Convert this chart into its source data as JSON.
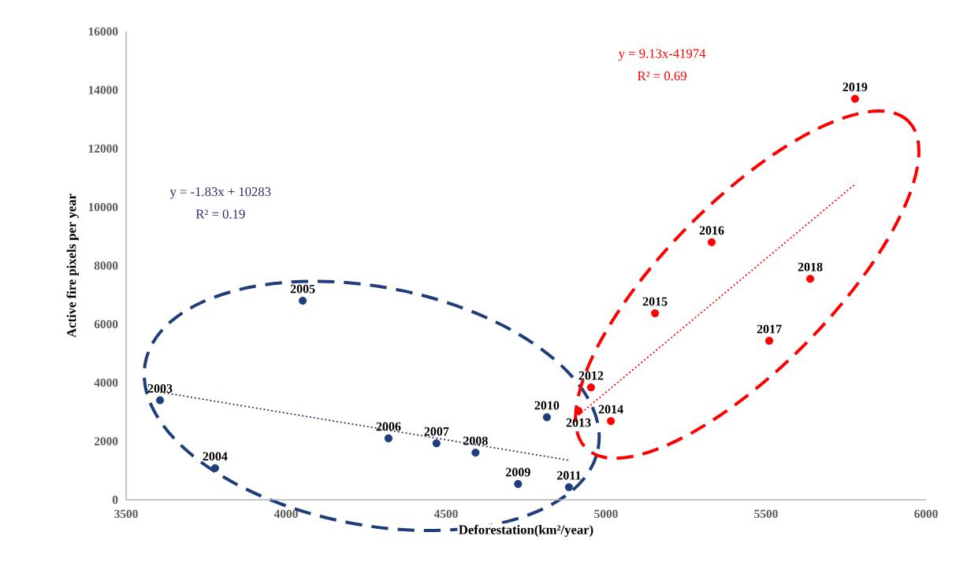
{
  "chart_data": {
    "type": "scatter",
    "xlabel": "Deforestation(km²/year)",
    "ylabel": "Active fire pixels per year",
    "xlim": [
      3500,
      6000
    ],
    "ylim": [
      0,
      16000
    ],
    "xticks": [
      3500,
      4000,
      4500,
      5000,
      5500,
      6000
    ],
    "yticks": [
      0,
      2000,
      4000,
      6000,
      8000,
      10000,
      12000,
      14000,
      16000
    ],
    "series": [
      {
        "color": "#1f3d7a",
        "marker": "circle",
        "x": [
          3606,
          3778,
          4052,
          4320,
          4470,
          4592,
          4725,
          4815,
          4884
        ],
        "values": [
          3400,
          1080,
          6800,
          2100,
          1930,
          1610,
          540,
          2820,
          430
        ]
      },
      {
        "color": "#ff0000",
        "marker": "circle",
        "x": [
          4953,
          4914,
          5015,
          5153,
          5330,
          5510,
          5638,
          5778
        ],
        "values": [
          3840,
          3040,
          2690,
          6370,
          8800,
          5430,
          7550,
          13700
        ]
      },
      {
        "type": "line",
        "color": "#2e2e6a",
        "line_style": "dotted",
        "marker": "none",
        "x": [
          3606,
          4884
        ],
        "values": [
          3680,
          1350
        ]
      },
      {
        "type": "line",
        "color": "#ff0000",
        "line_style": "dotted",
        "marker": "none",
        "x": [
          4914,
          5778
        ],
        "values": [
          2890,
          10780
        ]
      }
    ],
    "annotations": [
      {
        "text": "2003",
        "x": 3606,
        "y": 3400
      },
      {
        "text": "2004",
        "x": 3778,
        "y": 1080
      },
      {
        "text": "2005",
        "x": 4052,
        "y": 6800
      },
      {
        "text": "2006",
        "x": 4320,
        "y": 2100
      },
      {
        "text": "2007",
        "x": 4470,
        "y": 1930
      },
      {
        "text": "2008",
        "x": 4592,
        "y": 1610
      },
      {
        "text": "2009",
        "x": 4725,
        "y": 540
      },
      {
        "text": "2010",
        "x": 4815,
        "y": 2820
      },
      {
        "text": "2011",
        "x": 4884,
        "y": 430
      },
      {
        "text": "2012",
        "x": 4953,
        "y": 3840
      },
      {
        "text": "2013",
        "x": 4914,
        "y": 3040
      },
      {
        "text": "2014",
        "x": 5015,
        "y": 2690
      },
      {
        "text": "2015",
        "x": 5153,
        "y": 6370
      },
      {
        "text": "2016",
        "x": 5330,
        "y": 8800
      },
      {
        "text": "2017",
        "x": 5510,
        "y": 5430
      },
      {
        "text": "2018",
        "x": 5638,
        "y": 7550
      },
      {
        "text": "2019",
        "x": 5778,
        "y": 13700
      },
      "y = -1.83x + 10283",
      "R² = 0.19",
      "y = 9.13x-41974",
      "R² = 0.69"
    ]
  }
}
